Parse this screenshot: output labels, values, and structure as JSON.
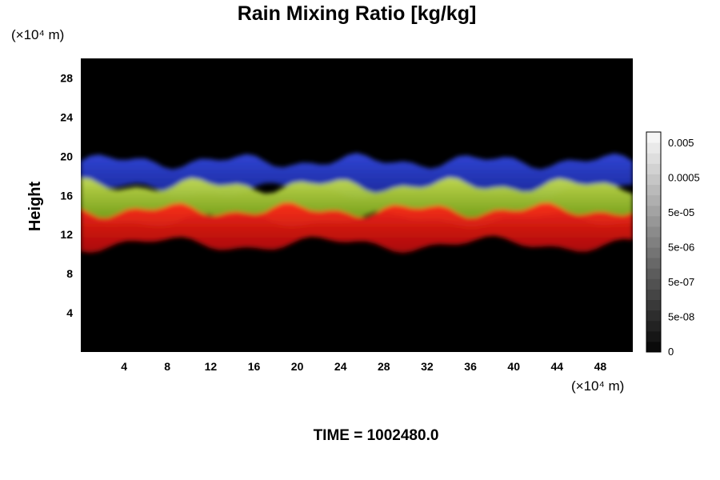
{
  "chart_data": {
    "type": "heatmap",
    "title": "Rain Mixing Ratio [kg/kg]",
    "ylabel": "Height",
    "x_unit": "(×10⁴ m)",
    "y_unit": "(×10⁴ m)",
    "x_ticks": [
      4,
      8,
      12,
      16,
      20,
      24,
      28,
      32,
      36,
      40,
      44,
      48
    ],
    "y_ticks": [
      4,
      8,
      12,
      16,
      20,
      24,
      28
    ],
    "xlim": [
      0,
      51
    ],
    "ylim": [
      0,
      30
    ],
    "colorbar_labels": [
      "0.005",
      "0.0005",
      "5e-05",
      "5e-06",
      "5e-07",
      "5e-08",
      "0"
    ],
    "colorbar_levels": 21,
    "background_color": "#000000",
    "bands": [
      {
        "name": "upper",
        "color": "#2a3fd6",
        "y_bottom": 16.5,
        "y_top": 19.5
      },
      {
        "name": "middle",
        "color": "#9ccc1a",
        "y_bottom": 13.5,
        "y_top": 17
      },
      {
        "name": "lower",
        "color": "#e01010",
        "y_bottom": 11,
        "y_top": 14.5
      }
    ],
    "time_label": "TIME = 1002480.0"
  }
}
